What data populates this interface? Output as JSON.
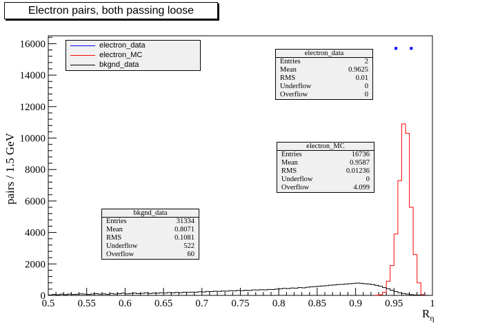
{
  "chart_data": {
    "type": "histogram",
    "title": "Electron pairs, both passing loose",
    "xlabel": "R",
    "xlabel_sub": "η",
    "ylabel": "pairs / 1.5 GeV",
    "xlim": [
      0.5,
      1.0
    ],
    "ylim": [
      0,
      16500
    ],
    "xticks": [
      "0.5",
      "0.55",
      "0.6",
      "0.65",
      "0.7",
      "0.75",
      "0.8",
      "0.85",
      "0.9",
      "0.95",
      "1"
    ],
    "yticks": [
      "0",
      "2000",
      "4000",
      "6000",
      "8000",
      "10000",
      "12000",
      "14000",
      "16000"
    ],
    "bin_width": 0.005,
    "series": [
      {
        "name": "electron_data",
        "color": "#0000ff",
        "style": "markers",
        "points": [
          [
            0.9525,
            15700
          ],
          [
            0.9725,
            15700
          ]
        ]
      },
      {
        "name": "electron_MC",
        "color": "#ff0000",
        "style": "step",
        "bin_lo": [
          0.925,
          0.93,
          0.935,
          0.94,
          0.945,
          0.95,
          0.955,
          0.96,
          0.965,
          0.97,
          0.975,
          0.98,
          0.985
        ],
        "values": [
          10,
          40,
          200,
          900,
          1900,
          3900,
          7300,
          10900,
          10300,
          5600,
          2600,
          800,
          50
        ]
      },
      {
        "name": "bkgnd_data",
        "color": "#000000",
        "style": "step",
        "bin_lo": [
          0.5,
          0.505,
          0.51,
          0.515,
          0.52,
          0.525,
          0.53,
          0.535,
          0.54,
          0.545,
          0.55,
          0.555,
          0.56,
          0.565,
          0.57,
          0.575,
          0.58,
          0.585,
          0.59,
          0.595,
          0.6,
          0.605,
          0.61,
          0.615,
          0.62,
          0.625,
          0.63,
          0.635,
          0.64,
          0.645,
          0.65,
          0.655,
          0.66,
          0.665,
          0.67,
          0.675,
          0.68,
          0.685,
          0.69,
          0.695,
          0.7,
          0.705,
          0.71,
          0.715,
          0.72,
          0.725,
          0.73,
          0.735,
          0.74,
          0.745,
          0.75,
          0.755,
          0.76,
          0.765,
          0.77,
          0.775,
          0.78,
          0.785,
          0.79,
          0.795,
          0.8,
          0.805,
          0.81,
          0.815,
          0.82,
          0.825,
          0.83,
          0.835,
          0.84,
          0.845,
          0.85,
          0.855,
          0.86,
          0.865,
          0.87,
          0.875,
          0.88,
          0.885,
          0.89,
          0.895,
          0.9,
          0.905,
          0.91,
          0.915,
          0.92,
          0.925,
          0.93,
          0.935,
          0.94,
          0.945,
          0.95,
          0.955,
          0.96,
          0.965,
          0.97,
          0.975,
          0.98,
          0.985,
          0.99,
          0.995
        ],
        "values": [
          30,
          60,
          40,
          80,
          50,
          90,
          60,
          70,
          100,
          80,
          60,
          90,
          110,
          80,
          100,
          70,
          120,
          90,
          110,
          140,
          100,
          120,
          150,
          110,
          130,
          160,
          120,
          150,
          140,
          170,
          150,
          180,
          160,
          190,
          170,
          200,
          190,
          210,
          200,
          230,
          220,
          250,
          240,
          260,
          250,
          280,
          270,
          300,
          290,
          320,
          300,
          330,
          310,
          350,
          340,
          360,
          350,
          380,
          370,
          400,
          420,
          450,
          430,
          470,
          460,
          500,
          480,
          520,
          540,
          560,
          580,
          600,
          620,
          650,
          660,
          690,
          700,
          720,
          740,
          760,
          780,
          770,
          740,
          720,
          690,
          640,
          580,
          500,
          420,
          330,
          240,
          170,
          120,
          80,
          50,
          30,
          20,
          10,
          5,
          0
        ]
      }
    ]
  },
  "legend": {
    "entries": [
      {
        "label": "electron_data",
        "color": "#0000ff"
      },
      {
        "label": "electron_MC",
        "color": "#ff0000"
      },
      {
        "label": "bkgnd_data",
        "color": "#000000"
      }
    ]
  },
  "stats_boxes": [
    {
      "title": "electron_data",
      "rows": [
        {
          "k": "Entries",
          "v": "2"
        },
        {
          "k": "Mean",
          "v": "0.9625"
        },
        {
          "k": "RMS",
          "v": "0.01"
        },
        {
          "k": "Underflow",
          "v": "0"
        },
        {
          "k": "Overflow",
          "v": "0"
        }
      ]
    },
    {
      "title": "electron_MC",
      "rows": [
        {
          "k": "Entries",
          "v": "16736"
        },
        {
          "k": "Mean",
          "v": "0.9587"
        },
        {
          "k": "RMS",
          "v": "0.01236"
        },
        {
          "k": "Underflow",
          "v": "0"
        },
        {
          "k": "Overflow",
          "v": "4.099"
        }
      ]
    },
    {
      "title": "bkgnd_data",
      "rows": [
        {
          "k": "Entries",
          "v": "31334"
        },
        {
          "k": "Mean",
          "v": "0.8071"
        },
        {
          "k": "RMS",
          "v": "0.1081"
        },
        {
          "k": "Underflow",
          "v": "522"
        },
        {
          "k": "Overflow",
          "v": "60"
        }
      ]
    }
  ]
}
